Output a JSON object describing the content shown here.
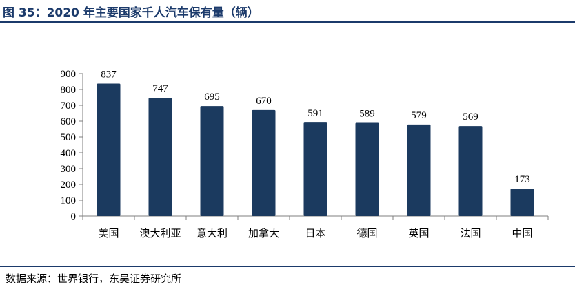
{
  "figure": {
    "title": "图 35：2020 年主要国家千人汽车保有量（辆）",
    "source": "数据来源：世界银行，东吴证券研究所"
  },
  "colors": {
    "bar": "#1b3a5f",
    "accent": "#1b3a6b"
  },
  "chart_data": {
    "type": "bar",
    "title": "",
    "xlabel": "",
    "ylabel": "",
    "categories": [
      "美国",
      "澳大利亚",
      "意大利",
      "加拿大",
      "日本",
      "德国",
      "英国",
      "法国",
      "中国"
    ],
    "values": [
      837,
      747,
      695,
      670,
      591,
      589,
      579,
      569,
      173
    ],
    "ylim": [
      0,
      900
    ],
    "yticks": [
      0,
      100,
      200,
      300,
      400,
      500,
      600,
      700,
      800,
      900
    ],
    "grid": false,
    "data_labels": true
  }
}
